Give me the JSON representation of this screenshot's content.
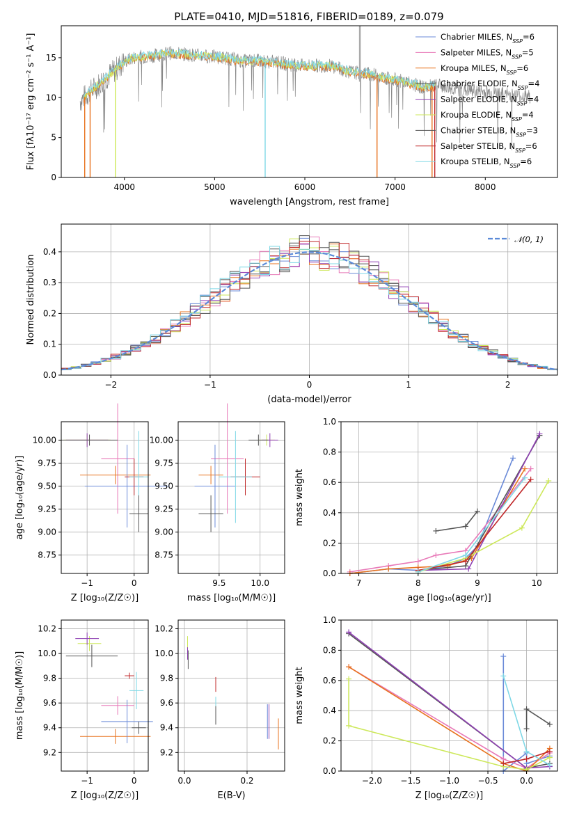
{
  "title": "PLATE=0410, MJD=51816, FIBERID=0189, z=0.079",
  "colors": {
    "chabrier_miles": "#6a8ad8",
    "salpeter_miles": "#e879b8",
    "kroupa_miles": "#e8731f",
    "chabrier_elodie": "#555555",
    "salpeter_elodie": "#8e3fb3",
    "kroupa_elodie": "#cde85a",
    "chabrier_stelib": "#555555",
    "salpeter_stelib": "#c0282a",
    "kroupa_stelib": "#7fd8e6",
    "data_gray": "#888888",
    "normal_curve": "#5a8ad8"
  },
  "chart_data": [
    {
      "type": "line",
      "xlabel": "wavelength [Angstrom, rest frame]",
      "ylabel": "Flux [fλ10⁻¹⁷ erg cm⁻² s⁻¹ A⁻¹]",
      "xlim": [
        3300,
        8800
      ],
      "ylim": [
        0,
        19
      ],
      "xticks": [
        "4000",
        "5000",
        "6000",
        "7000",
        "8000"
      ],
      "yticks": [
        "0",
        "5",
        "10",
        "15"
      ],
      "legend_position": "right",
      "legend": [
        {
          "base": "Chabrier MILES, N",
          "sub": "SSP",
          "tail": "=6"
        },
        {
          "base": "Salpeter MILES, N",
          "sub": "SSP",
          "tail": "=5"
        },
        {
          "base": "Kroupa MILES, N",
          "sub": "SSP",
          "tail": "=6"
        },
        {
          "base": "Chabrier ELODIE, N",
          "sub": "SSP",
          "tail": "=4"
        },
        {
          "base": "Salpeter ELODIE, N",
          "sub": "SSP",
          "tail": "=4"
        },
        {
          "base": "Kroupa ELODIE, N",
          "sub": "SSP",
          "tail": "=4"
        },
        {
          "base": "Chabrier STELIB, N",
          "sub": "SSP",
          "tail": "=3"
        },
        {
          "base": "Salpeter STELIB, N",
          "sub": "SSP",
          "tail": "=6"
        },
        {
          "base": "Kroupa STELIB, N",
          "sub": "SSP",
          "tail": "=6"
        }
      ],
      "continuum": [
        [
          3500,
          9.5
        ],
        [
          3600,
          10.5
        ],
        [
          3700,
          11.5
        ],
        [
          3800,
          12.5
        ],
        [
          3900,
          13.5
        ],
        [
          4000,
          14.5
        ],
        [
          4100,
          15.0
        ],
        [
          4300,
          15.2
        ],
        [
          4500,
          15.6
        ],
        [
          4700,
          15.4
        ],
        [
          4900,
          15.2
        ],
        [
          5100,
          15.0
        ],
        [
          5300,
          14.6
        ],
        [
          5500,
          14.6
        ],
        [
          5700,
          14.4
        ],
        [
          5900,
          14.0
        ],
        [
          6100,
          14.0
        ],
        [
          6300,
          14.0
        ],
        [
          6500,
          13.2
        ],
        [
          6700,
          13.0
        ],
        [
          6900,
          12.5
        ],
        [
          7100,
          12.0
        ],
        [
          7300,
          11.3
        ],
        [
          7500,
          11.5
        ],
        [
          7700,
          11.0
        ],
        [
          7900,
          10.8
        ],
        [
          8100,
          10.6
        ],
        [
          8300,
          10.3
        ],
        [
          8500,
          10.1
        ]
      ]
    },
    {
      "type": "bar",
      "xlabel": "(data-model)/error",
      "ylabel": "Normed distribution",
      "xlim": [
        -2.5,
        2.5
      ],
      "ylim": [
        0,
        0.49
      ],
      "xticks": [
        "−2",
        "−1",
        "0",
        "1",
        "2"
      ],
      "yticks": [
        "0.0",
        "0.1",
        "0.2",
        "0.3",
        "0.4"
      ],
      "grid": true,
      "legend_label": "𝒩(0, 1)",
      "legend_position": "top-right",
      "bin_width": 0.1
    },
    {
      "type": "scatter",
      "xlabel": "Z [log₁₀(Z/Z☉)]",
      "ylabel": "age  [log₁₀(age/yr)]",
      "xlim": [
        -1.55,
        0.3
      ],
      "ylim": [
        8.55,
        10.2
      ],
      "xticks": [
        "−1",
        "0"
      ],
      "yticks": [
        "8.75",
        "9.00",
        "9.25",
        "9.50",
        "9.75",
        "10.00"
      ],
      "points": [
        {
          "x": -0.35,
          "xerr": 0.35,
          "y": 9.8,
          "yerr": 1.2,
          "c": "salpeter_miles"
        },
        {
          "x": -0.4,
          "xerr": 0.75,
          "y": 9.62,
          "yerr": 0.2,
          "c": "kroupa_miles"
        },
        {
          "x": -0.15,
          "xerr": 0.9,
          "y": 9.5,
          "yerr": 0.9,
          "c": "chabrier_miles"
        },
        {
          "x": -1.0,
          "xerr": 0.5,
          "y": 10.0,
          "yerr": 0.12,
          "c": "kroupa_elodie"
        },
        {
          "x": -1.0,
          "xerr": 0.45,
          "y": 10.0,
          "yerr": 0.15,
          "c": "salpeter_elodie"
        },
        {
          "x": -0.95,
          "xerr": 0.6,
          "y": 10.0,
          "yerr": 0.12,
          "c": "chabrier_elodie"
        },
        {
          "x": 0.0,
          "xerr": 0.2,
          "y": 9.6,
          "yerr": 0.4,
          "c": "salpeter_stelib"
        },
        {
          "x": 0.1,
          "xerr": 0.2,
          "y": 9.6,
          "yerr": 1.0,
          "c": "kroupa_stelib"
        },
        {
          "x": 0.1,
          "xerr": 0.2,
          "y": 9.2,
          "yerr": 0.4,
          "c": "chabrier_stelib"
        }
      ]
    },
    {
      "type": "scatter",
      "xlabel": "mass [log₁₀(M/M☉)]",
      "ylabel": "",
      "xlim": [
        9.0,
        10.3
      ],
      "ylim": [
        8.55,
        10.2
      ],
      "xticks": [
        "9.5",
        "10.0"
      ],
      "yticks": [
        "8.75",
        "9.00",
        "9.25",
        "9.50",
        "9.75",
        "10.00"
      ],
      "points": [
        {
          "x": 9.6,
          "xerr": 0.2,
          "y": 9.8,
          "yerr": 1.2,
          "c": "salpeter_miles"
        },
        {
          "x": 9.4,
          "xerr": 0.15,
          "y": 9.62,
          "yerr": 0.2,
          "c": "kroupa_miles"
        },
        {
          "x": 9.45,
          "xerr": 0.25,
          "y": 9.5,
          "yerr": 0.9,
          "c": "chabrier_miles"
        },
        {
          "x": 10.08,
          "xerr": 0.1,
          "y": 10.0,
          "yerr": 0.12,
          "c": "kroupa_elodie"
        },
        {
          "x": 10.12,
          "xerr": 0.1,
          "y": 10.0,
          "yerr": 0.15,
          "c": "salpeter_elodie"
        },
        {
          "x": 9.98,
          "xerr": 0.12,
          "y": 10.0,
          "yerr": 0.12,
          "c": "chabrier_elodie"
        },
        {
          "x": 9.82,
          "xerr": 0.18,
          "y": 9.6,
          "yerr": 0.4,
          "c": "salpeter_stelib"
        },
        {
          "x": 9.7,
          "xerr": 0.2,
          "y": 9.6,
          "yerr": 1.0,
          "c": "kroupa_stelib"
        },
        {
          "x": 9.4,
          "xerr": 0.15,
          "y": 9.2,
          "yerr": 0.4,
          "c": "chabrier_stelib"
        }
      ]
    },
    {
      "type": "line",
      "xlabel": "age  [log₁₀(age/yr)]",
      "ylabel": "mass weight",
      "xlim": [
        6.7,
        10.35
      ],
      "ylim": [
        0,
        1.0
      ],
      "xticks": [
        "7",
        "8",
        "9",
        "10"
      ],
      "yticks": [
        "0.0",
        "0.2",
        "0.4",
        "0.6",
        "0.8",
        "1.0"
      ],
      "grid": true,
      "series": [
        {
          "c": "chabrier_miles",
          "x": [
            6.85,
            7.5,
            8.0,
            8.5,
            8.8,
            9.0,
            9.6
          ],
          "y": [
            0.0,
            0.03,
            0.02,
            0.05,
            0.1,
            0.18,
            0.76
          ]
        },
        {
          "c": "salpeter_miles",
          "x": [
            6.85,
            7.5,
            8.0,
            8.3,
            8.8,
            9.9
          ],
          "y": [
            0.01,
            0.05,
            0.08,
            0.12,
            0.15,
            0.69
          ]
        },
        {
          "c": "kroupa_miles",
          "x": [
            6.85,
            7.5,
            8.0,
            8.5,
            8.9,
            9.8
          ],
          "y": [
            0.0,
            0.03,
            0.04,
            0.05,
            0.1,
            0.69
          ]
        },
        {
          "c": "chabrier_elodie",
          "x": [
            8.0,
            8.8,
            10.05
          ],
          "y": [
            0.02,
            0.05,
            0.91
          ]
        },
        {
          "c": "salpeter_elodie",
          "x": [
            8.0,
            8.85,
            10.05
          ],
          "y": [
            0.02,
            0.03,
            0.92
          ]
        },
        {
          "c": "kroupa_elodie",
          "x": [
            8.0,
            8.8,
            9.75,
            10.2
          ],
          "y": [
            0.01,
            0.1,
            0.3,
            0.61
          ]
        },
        {
          "c": "chabrier_stelib",
          "x": [
            8.3,
            8.8,
            9.0
          ],
          "y": [
            0.28,
            0.31,
            0.41
          ]
        },
        {
          "c": "salpeter_stelib",
          "x": [
            8.0,
            8.8,
            9.9
          ],
          "y": [
            0.02,
            0.08,
            0.62
          ]
        },
        {
          "c": "kroupa_stelib",
          "x": [
            8.0,
            8.8,
            9.8
          ],
          "y": [
            0.01,
            0.12,
            0.63
          ]
        }
      ]
    },
    {
      "type": "scatter",
      "xlabel": "Z [log₁₀(Z/Z☉)]",
      "ylabel": "mass [log₁₀(M/M☉)]",
      "xlim": [
        -1.55,
        0.3
      ],
      "ylim": [
        9.05,
        10.27
      ],
      "xticks": [
        "−1",
        "0"
      ],
      "yticks": [
        "9.2",
        "9.4",
        "9.6",
        "9.8",
        "10.0",
        "10.2"
      ],
      "points": [
        {
          "x": -0.35,
          "xerr": 0.35,
          "y": 9.58,
          "yerr": 0.15,
          "c": "salpeter_miles"
        },
        {
          "x": -0.4,
          "xerr": 0.75,
          "y": 9.33,
          "yerr": 0.12,
          "c": "kroupa_miles"
        },
        {
          "x": -0.15,
          "xerr": 0.55,
          "y": 9.45,
          "yerr": 0.35,
          "c": "chabrier_miles"
        },
        {
          "x": -0.95,
          "xerr": 0.25,
          "y": 10.08,
          "yerr": 0.12,
          "c": "kroupa_elodie"
        },
        {
          "x": -1.0,
          "xerr": 0.25,
          "y": 10.12,
          "yerr": 0.1,
          "c": "salpeter_elodie"
        },
        {
          "x": -0.9,
          "xerr": 0.55,
          "y": 9.98,
          "yerr": 0.18,
          "c": "chabrier_elodie"
        },
        {
          "x": -0.1,
          "xerr": 0.1,
          "y": 9.82,
          "yerr": 0.05,
          "c": "salpeter_stelib"
        },
        {
          "x": 0.05,
          "xerr": 0.15,
          "y": 9.7,
          "yerr": 0.3,
          "c": "kroupa_stelib"
        },
        {
          "x": 0.1,
          "xerr": 0.15,
          "y": 9.4,
          "yerr": 0.1,
          "c": "chabrier_stelib"
        }
      ]
    },
    {
      "type": "scatter",
      "xlabel": "E(B-V)",
      "ylabel": "",
      "xlim": [
        -0.02,
        0.32
      ],
      "ylim": [
        9.05,
        10.27
      ],
      "xticks": [
        "0.0",
        "0.2"
      ],
      "yticks": [
        "9.2",
        "9.4",
        "9.6",
        "9.8",
        "10.0",
        "10.2"
      ],
      "points": [
        {
          "x": 0.265,
          "yerr": 0.28,
          "y": 9.45,
          "c": "chabrier_miles"
        },
        {
          "x": 0.27,
          "yerr": 0.28,
          "y": 9.45,
          "c": "salpeter_elodie"
        },
        {
          "x": 0.3,
          "yerr": 0.25,
          "y": 9.35,
          "c": "kroupa_miles"
        },
        {
          "x": 0.01,
          "yerr": 0.12,
          "y": 10.08,
          "c": "kroupa_elodie"
        },
        {
          "x": 0.01,
          "yerr": 0.1,
          "y": 10.0,
          "c": "salpeter_elodie"
        },
        {
          "x": 0.012,
          "yerr": 0.15,
          "y": 9.95,
          "c": "chabrier_elodie"
        },
        {
          "x": 0.1,
          "yerr": 0.12,
          "y": 9.75,
          "c": "salpeter_stelib"
        },
        {
          "x": 0.1,
          "yerr": 0.2,
          "y": 9.55,
          "c": "kroupa_stelib"
        },
        {
          "x": 0.1,
          "yerr": 0.15,
          "y": 9.5,
          "c": "chabrier_stelib"
        }
      ]
    },
    {
      "type": "line",
      "xlabel": "Z [log₁₀(Z/Z☉)]",
      "ylabel": "mass weight",
      "xlim": [
        -2.4,
        0.4
      ],
      "ylim": [
        0,
        1.0
      ],
      "xticks": [
        "−2.0",
        "−1.5",
        "−1.0",
        "−0.5",
        "0.0"
      ],
      "yticks": [
        "0.0",
        "0.2",
        "0.4",
        "0.6",
        "0.8",
        "1.0"
      ],
      "grid": true,
      "series": [
        {
          "c": "chabrier_miles",
          "x": [
            -0.3,
            -0.3,
            0.0,
            0.0,
            0.3
          ],
          "y": [
            0.76,
            0.0,
            0.12,
            0.05,
            0.1
          ]
        },
        {
          "c": "salpeter_miles",
          "x": [
            -2.3,
            -0.3,
            0.0,
            0.3
          ],
          "y": [
            0.69,
            0.08,
            0.02,
            0.12
          ]
        },
        {
          "c": "kroupa_miles",
          "x": [
            -2.3,
            -0.3,
            0.0,
            0.3
          ],
          "y": [
            0.69,
            0.05,
            0.0,
            0.15
          ]
        },
        {
          "c": "chabrier_elodie",
          "x": [
            -2.3,
            0.0,
            0.3
          ],
          "y": [
            0.91,
            0.02,
            0.05
          ]
        },
        {
          "c": "salpeter_elodie",
          "x": [
            -2.3,
            0.0,
            0.3
          ],
          "y": [
            0.92,
            0.02,
            0.03
          ]
        },
        {
          "c": "kroupa_elodie",
          "x": [
            -2.3,
            -2.3,
            -0.3,
            0.0,
            0.3
          ],
          "y": [
            0.61,
            0.3,
            0.03,
            0.01,
            0.09
          ]
        },
        {
          "c": "chabrier_stelib",
          "x": [
            0.0,
            0.0,
            0.3
          ],
          "y": [
            0.28,
            0.41,
            0.31
          ]
        },
        {
          "c": "salpeter_stelib",
          "x": [
            -0.3,
            0.0,
            0.3
          ],
          "y": [
            0.05,
            0.08,
            0.13
          ]
        },
        {
          "c": "kroupa_stelib",
          "x": [
            -0.3,
            0.0,
            0.3
          ],
          "y": [
            0.63,
            0.13,
            0.04
          ]
        }
      ]
    }
  ]
}
